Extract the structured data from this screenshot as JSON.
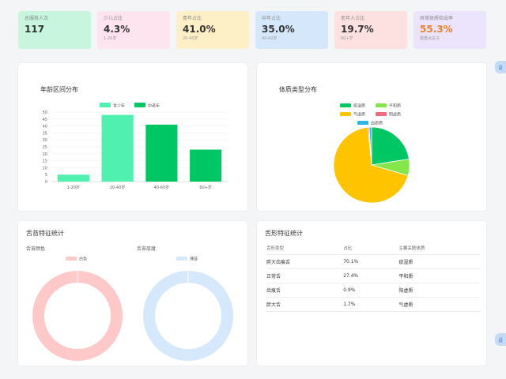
{
  "stats": [
    {
      "label": "总服务人次",
      "value": "117",
      "sub": "",
      "bg": "#c7f5dd",
      "value_color": "#333333"
    },
    {
      "label": "少儿占比",
      "value": "4.3%",
      "sub": "1-20岁",
      "bg": "#fde4ef",
      "value_color": "#333333"
    },
    {
      "label": "青年占比",
      "value": "41.0%",
      "sub": "20-40岁",
      "bg": "#fdefc6",
      "value_color": "#333333"
    },
    {
      "label": "中年占比",
      "value": "35.0%",
      "sub": "40-60岁",
      "bg": "#d5e8fb",
      "value_color": "#333333"
    },
    {
      "label": "老年人占比",
      "value": "19.7%",
      "sub": "60+岁",
      "bg": "#fde0e0",
      "value_color": "#333333"
    },
    {
      "label": "异常体质检出率",
      "value": "55.3%",
      "sub": "需重点关注",
      "bg": "#ebe4fc",
      "value_color": "#f07f2c"
    }
  ],
  "side_tab_label": "设",
  "age_chart": {
    "title": "年龄区间分布",
    "chart_data": {
      "type": "bar",
      "categories": [
        "1-20岁",
        "20-40岁",
        "40-60岁",
        "60+岁"
      ],
      "values": [
        5,
        48,
        41,
        23
      ],
      "colors": [
        "#4ff0b0",
        "#4ff0b0",
        "#00c764",
        "#00c764"
      ],
      "ylim": [
        0,
        50
      ],
      "yticks": [
        0,
        5,
        10,
        15,
        20,
        25,
        30,
        35,
        40,
        45,
        50
      ],
      "legend": [
        {
          "name": "青少年",
          "color": "#4ff0b0"
        },
        {
          "name": "中老年",
          "color": "#00c764"
        }
      ],
      "legend_position": "top",
      "grid": true
    }
  },
  "constitution_chart": {
    "title": "体质类型分布",
    "chart_data": {
      "type": "pie",
      "slices": [
        {
          "name": "痰湿质",
          "value": 22.5,
          "color": "#00c764"
        },
        {
          "name": "平和质",
          "value": 7,
          "color": "#84e64a"
        },
        {
          "name": "气虚质",
          "value": 69,
          "color": "#ffc400"
        },
        {
          "name": "阴虚质",
          "value": 0.5,
          "color": "#f36a7e"
        },
        {
          "name": "血瘀质",
          "value": 1,
          "color": "#2fb6e8"
        }
      ],
      "legend_position": "top"
    }
  },
  "coating": {
    "title": "舌苔特征统计",
    "color_chart": {
      "subtitle": "舌苔颜色",
      "chart_data": {
        "type": "pie",
        "donut": true,
        "slices": [
          {
            "name": "白色",
            "value": 100,
            "color": "#ffc9c9"
          }
        ],
        "legend_position": "top"
      }
    },
    "thickness_chart": {
      "subtitle": "舌苔厚度",
      "chart_data": {
        "type": "pie",
        "donut": true,
        "slices": [
          {
            "name": "薄苔",
            "value": 100,
            "color": "#d6e9fc"
          }
        ],
        "legend_position": "top"
      }
    }
  },
  "shape": {
    "title": "舌形特征统计",
    "chart_data": {
      "type": "table",
      "columns": [
        "舌形类型",
        "占比",
        "主要关联体质"
      ],
      "rows": [
        [
          "胖大齿痕舌",
          "70.1%",
          "痰湿质"
        ],
        [
          "正常舌",
          "27.4%",
          "平和质"
        ],
        [
          "齿痕舌",
          "0.9%",
          "阳虚质"
        ],
        [
          "胖大舌",
          "1.7%",
          "气虚质"
        ]
      ]
    }
  }
}
